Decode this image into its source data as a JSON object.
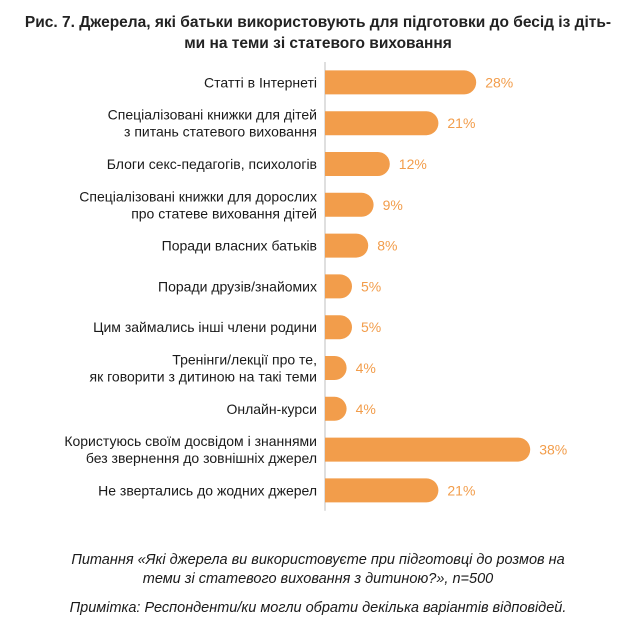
{
  "title_lines": [
    "Рис. 7. Джерела, які батьки використовують для підготовки до бесід із діть-",
    "ми на теми зі статевого виховання"
  ],
  "colors": {
    "bar": "#f29d4b",
    "value_text": "#f29d4b",
    "axis": "#bfbfbf"
  },
  "chart_data": {
    "type": "bar",
    "orientation": "horizontal",
    "categories": [
      [
        "Статті в Інтернеті"
      ],
      [
        "Спеціалізовані книжки для дітей",
        "з питань статевого виховання"
      ],
      [
        "Блоги секс-педагогів, психологів"
      ],
      [
        "Спеціалізовані книжки для дорослих",
        "про статеве виховання дітей"
      ],
      [
        "Поради власних батьків"
      ],
      [
        "Поради друзів/знайомих"
      ],
      [
        "Цим займались інші члени родини"
      ],
      [
        "Тренінги/лекції про те,",
        "як говорити з дитиною на такі теми"
      ],
      [
        "Онлайн-курси"
      ],
      [
        "Користуюсь своїм досвідом і знаннями",
        "без звернення до зовнішніх джерел"
      ],
      [
        "Не звертались до жодних джерел"
      ]
    ],
    "values": [
      28,
      21,
      12,
      9,
      8,
      5,
      5,
      4,
      4,
      38,
      21
    ],
    "value_labels": [
      "28%",
      "21%",
      "12%",
      "9%",
      "8%",
      "5%",
      "5%",
      "4%",
      "4%",
      "38%",
      "21%"
    ],
    "unit": "%",
    "xlim": [
      0,
      40
    ],
    "grid": false,
    "legend": "none"
  },
  "notes": {
    "question_lines": [
      "Питання «Які джерела ви використовуєте при підготовці до розмов на",
      "теми зі статевого виховання з дитиною?», n=500"
    ],
    "remark": "Примітка: Респонденти/ки могли обрати декілька варіантів відповідей."
  }
}
